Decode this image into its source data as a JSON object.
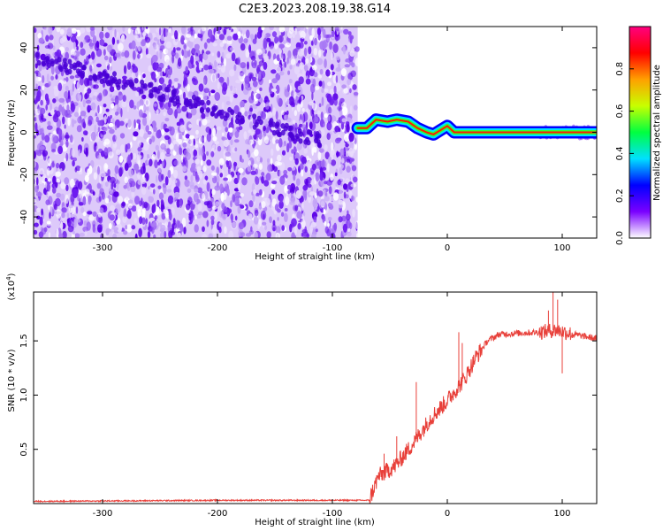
{
  "title": "C2E3.2023.208.19.38.G14",
  "chart_data": [
    {
      "type": "heatmap",
      "xlabel": "Height of straight line (km)",
      "ylabel": "Frequency (Hz)",
      "xlim": [
        -360,
        130
      ],
      "ylim": [
        -50,
        50
      ],
      "xticks": [
        -300,
        -200,
        -100,
        0,
        100
      ],
      "yticks": [
        -40,
        -20,
        0,
        20,
        40
      ],
      "xtick_labels": [
        "-300",
        "-200",
        "-100",
        "0",
        "100"
      ],
      "ytick_labels": [
        "-40",
        "-20",
        "0",
        "20",
        "40"
      ],
      "noise_region_x": [
        -360,
        -78
      ],
      "signal_track": [
        {
          "x": -78,
          "y": 2
        },
        {
          "x": -70,
          "y": 2
        },
        {
          "x": -62,
          "y": 6
        },
        {
          "x": -52,
          "y": 5
        },
        {
          "x": -44,
          "y": 6
        },
        {
          "x": -34,
          "y": 5
        },
        {
          "x": -26,
          "y": 2
        },
        {
          "x": -18,
          "y": 0
        },
        {
          "x": -12,
          "y": -1
        },
        {
          "x": -6,
          "y": 1
        },
        {
          "x": 0,
          "y": 3
        },
        {
          "x": 6,
          "y": 0
        },
        {
          "x": 20,
          "y": 0
        },
        {
          "x": 60,
          "y": 0
        },
        {
          "x": 130,
          "y": 0
        }
      ],
      "colorbar": {
        "label": "Normalized spectral amplitude",
        "range": [
          0,
          1
        ],
        "ticks": [
          0.0,
          0.2,
          0.4,
          0.6,
          0.8
        ],
        "tick_labels": [
          "0.0",
          "0.2",
          "0.4",
          "0.6",
          "0.8"
        ],
        "colors": [
          "#ffffff",
          "#7a00ff",
          "#0000ff",
          "#00e0ff",
          "#00ff40",
          "#c8ff00",
          "#ffa000",
          "#ff0000",
          "#ff0080"
        ]
      },
      "colors": {
        "noise": "#6a1fe6"
      }
    },
    {
      "type": "line",
      "xlabel": "Height of straight line (km)",
      "ylabel": "SNR (10 * v/v)",
      "scale_label": "(x10",
      "scale_exp": "4",
      "xlim": [
        -360,
        130
      ],
      "ylim": [
        0,
        1.95
      ],
      "xticks": [
        -300,
        -200,
        -100,
        0,
        100
      ],
      "yticks": [
        0.5,
        1.0,
        1.5
      ],
      "xtick_labels": [
        "-300",
        "-200",
        "-100",
        "0",
        "100"
      ],
      "ytick_labels": [
        "0.5",
        "1.0",
        "1.5"
      ],
      "series": [
        {
          "color": "#e8403a",
          "points": [
            {
              "x": -360,
              "y": 0.02
            },
            {
              "x": -200,
              "y": 0.03
            },
            {
              "x": -100,
              "y": 0.03
            },
            {
              "x": -68,
              "y": 0.03
            },
            {
              "x": -60,
              "y": 0.25
            },
            {
              "x": -45,
              "y": 0.35
            },
            {
              "x": -30,
              "y": 0.55
            },
            {
              "x": -15,
              "y": 0.78
            },
            {
              "x": 0,
              "y": 0.95
            },
            {
              "x": 15,
              "y": 1.15
            },
            {
              "x": 25,
              "y": 1.35
            },
            {
              "x": 35,
              "y": 1.5
            },
            {
              "x": 45,
              "y": 1.56
            },
            {
              "x": 60,
              "y": 1.57
            },
            {
              "x": 80,
              "y": 1.58
            },
            {
              "x": 95,
              "y": 1.6
            },
            {
              "x": 110,
              "y": 1.56
            },
            {
              "x": 130,
              "y": 1.52
            }
          ],
          "spikes": [
            {
              "x": -55,
              "y": 0.46
            },
            {
              "x": -44,
              "y": 0.62
            },
            {
              "x": -27,
              "y": 1.12
            },
            {
              "x": 10,
              "y": 1.58
            },
            {
              "x": 13,
              "y": 1.48
            },
            {
              "x": 88,
              "y": 1.78
            },
            {
              "x": 92,
              "y": 1.95
            },
            {
              "x": 96,
              "y": 1.88
            },
            {
              "x": 100,
              "y": 1.2
            }
          ]
        }
      ]
    }
  ]
}
